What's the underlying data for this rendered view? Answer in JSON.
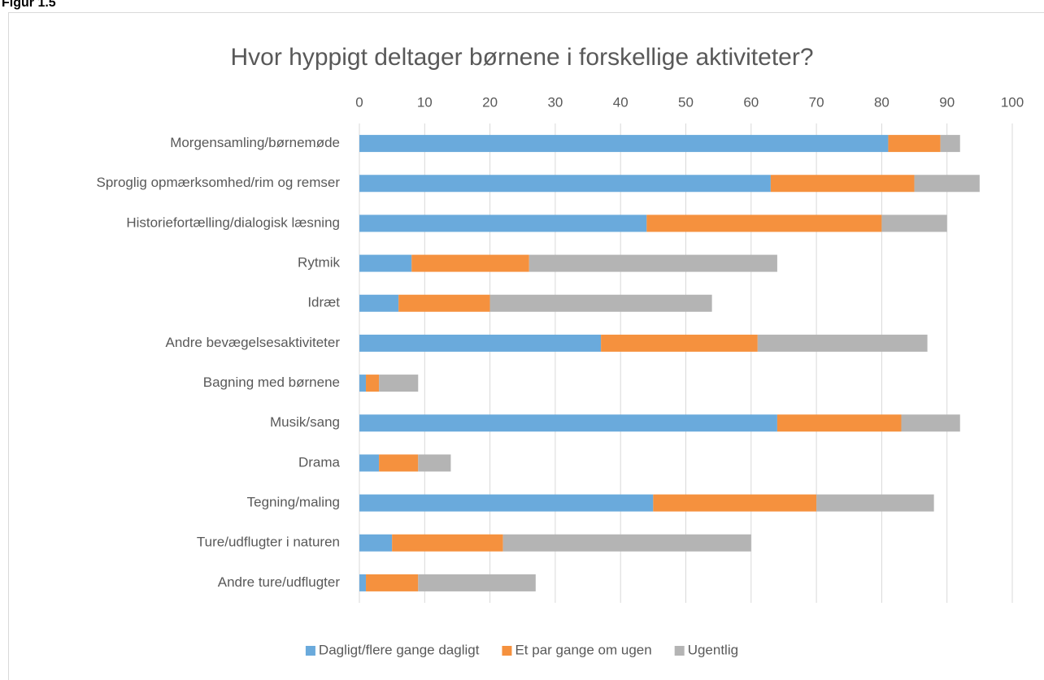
{
  "figure_label": "Figur 1.5",
  "chart_data": {
    "type": "stacked-bar-horizontal",
    "title": "Hvor hyppigt deltager børnene i forskellige aktiviteter?",
    "categories": [
      "Morgensamling/børnemøde",
      "Sproglig opmærksomhed/rim og remser",
      "Historiefortælling/dialogisk læsning",
      "Rytmik",
      "Idræt",
      "Andre bevægelsesaktiviteter",
      "Bagning med børnene",
      "Musik/sang",
      "Drama",
      "Tegning/maling",
      "Ture/udflugter i naturen",
      "Andre ture/udflugter"
    ],
    "series": [
      {
        "name": "Dagligt/flere gange dagligt",
        "color": "#6aaadc",
        "values": [
          81,
          63,
          44,
          8,
          6,
          37,
          1,
          64,
          3,
          45,
          5,
          1
        ]
      },
      {
        "name": "Et par gange om ugen",
        "color": "#f5913e",
        "values": [
          8,
          22,
          36,
          18,
          14,
          24,
          2,
          19,
          6,
          25,
          17,
          8
        ]
      },
      {
        "name": "Ugentlig",
        "color": "#b4b4b4",
        "values": [
          3,
          10,
          10,
          38,
          34,
          26,
          6,
          9,
          5,
          18,
          38,
          18
        ]
      }
    ],
    "xlim": [
      0,
      100
    ],
    "xticks": [
      0,
      10,
      20,
      30,
      40,
      50,
      60,
      70,
      80,
      90,
      100
    ],
    "grid": true,
    "legend": "bottom"
  }
}
